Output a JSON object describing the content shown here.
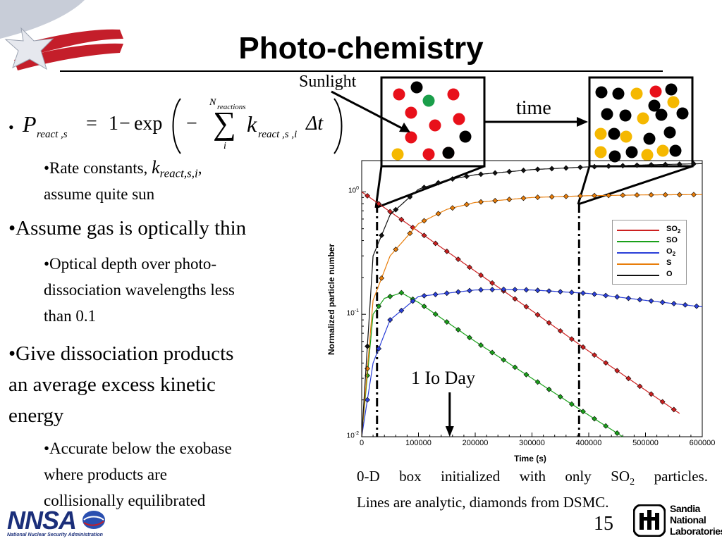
{
  "slide": {
    "title": "Photo-chemistry",
    "page_number": "15"
  },
  "equation": {
    "bullet": "•",
    "lhs_P": "P",
    "lhs_sub": "react ,s",
    "equals": "=",
    "one": "1",
    "minus": "−",
    "exp": "exp",
    "neg": "−",
    "sum_upper_N": "N",
    "sum_upper_sub": "reactions",
    "sum_symbol": "∑",
    "sum_lower": "i",
    "k": "k",
    "k_sub": "react ,s ,i",
    "dt": "Δt"
  },
  "bullets": {
    "rate_prefix": "•Rate constants, ",
    "rate_k": "k",
    "rate_k_sub": "react,s,i",
    "rate_comma": ",",
    "rate_line2": "assume quite sun",
    "optically_thin": "•Assume gas is optically thin",
    "optical_depth_1": "•Optical depth over photo-",
    "optical_depth_2": "dissociation wavelengths less",
    "optical_depth_3": "than 0.1",
    "give_1": "•Give dissociation products",
    "give_2": "an average excess kinetic",
    "give_3": "energy",
    "accurate_1": "•Accurate below the exobase",
    "accurate_2": "where products are",
    "accurate_3": "collisionally equilibrated"
  },
  "diagram": {
    "sunlight_label": "Sunlight",
    "time_label": "time",
    "box_before_dots": [
      {
        "color": "#e8101a"
      },
      {
        "color": "#000000"
      },
      {
        "color": "#e8101a"
      },
      {
        "color": "#1a9e4a"
      },
      {
        "color": "#e8101a"
      },
      {
        "color": "#e8101a"
      },
      {
        "color": "#e8101a"
      },
      {
        "color": "#e8101a"
      },
      {
        "color": "#e8101a"
      },
      {
        "color": "#000000"
      },
      {
        "color": "#f5b800"
      },
      {
        "color": "#e8101a"
      },
      {
        "color": "#000000"
      }
    ],
    "box_after_dot_colors": [
      "#000000",
      "#f5b800",
      "#e8101a"
    ]
  },
  "colors": {
    "SO2": "#cc2020",
    "SO": "#1aa01a",
    "O2": "#2a3fd8",
    "S": "#e87d0a",
    "O": "#111111"
  },
  "chart_data": {
    "type": "line",
    "xlabel": "Time (s)",
    "ylabel": "Normalized particle number",
    "xlim": [
      0,
      600000
    ],
    "ylim": [
      0.01,
      1.8
    ],
    "y_scale": "log",
    "x_ticks": [
      "0",
      "100000",
      "200000",
      "300000",
      "400000",
      "500000",
      "600000"
    ],
    "y_ticks": [
      {
        "base": "10",
        "exp": "0"
      },
      {
        "base": "10",
        "exp": "-1"
      },
      {
        "base": "10",
        "exp": "-2"
      }
    ],
    "legend": [
      {
        "name": "SO",
        "sub": "2",
        "color": "#cc2020"
      },
      {
        "name": "SO",
        "sub": "",
        "color": "#1aa01a"
      },
      {
        "name": "O",
        "sub": "2",
        "color": "#2a3fd8"
      },
      {
        "name": "S",
        "sub": "",
        "color": "#e87d0a"
      },
      {
        "name": "O",
        "sub": "",
        "color": "#111111"
      }
    ],
    "legend_position": "top-right",
    "series": [
      {
        "name": "SO2",
        "x": [
          0,
          100000,
          200000,
          300000,
          400000,
          500000,
          560000
        ],
        "y": [
          1.0,
          0.475,
          0.225,
          0.107,
          0.05,
          0.024,
          0.0155
        ]
      },
      {
        "name": "SO",
        "x": [
          0,
          20000,
          40000,
          70000,
          100000,
          200000,
          300000,
          400000,
          460000
        ],
        "y": [
          0.01,
          0.1,
          0.135,
          0.15,
          0.125,
          0.06,
          0.03,
          0.015,
          0.01
        ]
      },
      {
        "name": "O2",
        "x": [
          0,
          20000,
          50000,
          100000,
          200000,
          250000,
          300000,
          400000,
          500000,
          600000
        ],
        "y": [
          0.01,
          0.04,
          0.09,
          0.14,
          0.158,
          0.16,
          0.158,
          0.148,
          0.13,
          0.115
        ]
      },
      {
        "name": "S",
        "x": [
          0,
          20000,
          50000,
          100000,
          150000,
          200000,
          300000,
          400000,
          500000,
          600000
        ],
        "y": [
          0.01,
          0.13,
          0.3,
          0.55,
          0.72,
          0.82,
          0.9,
          0.93,
          0.945,
          0.95
        ]
      },
      {
        "name": "O",
        "x": [
          0,
          20000,
          50000,
          100000,
          150000,
          200000,
          300000,
          400000,
          500000,
          600000
        ],
        "y": [
          0.01,
          0.3,
          0.65,
          1.05,
          1.25,
          1.38,
          1.52,
          1.6,
          1.66,
          1.7
        ]
      }
    ],
    "annotations": [
      {
        "text": "1 Io Day",
        "x": 155000
      }
    ],
    "vlines_x": [
      27000,
      383000
    ]
  },
  "caption": {
    "line1_pre": "0-D  box  initialized  with  only  SO",
    "line1_sub": "2",
    "line1_post": "  particles.",
    "line2": "Lines are analytic, diamonds from DSMC."
  },
  "logos": {
    "nnsa_text": "NNSA",
    "nnsa_sub": "National Nuclear Security Administration",
    "sandia_1": "Sandia",
    "sandia_2": "National",
    "sandia_3": "Laboratories"
  }
}
